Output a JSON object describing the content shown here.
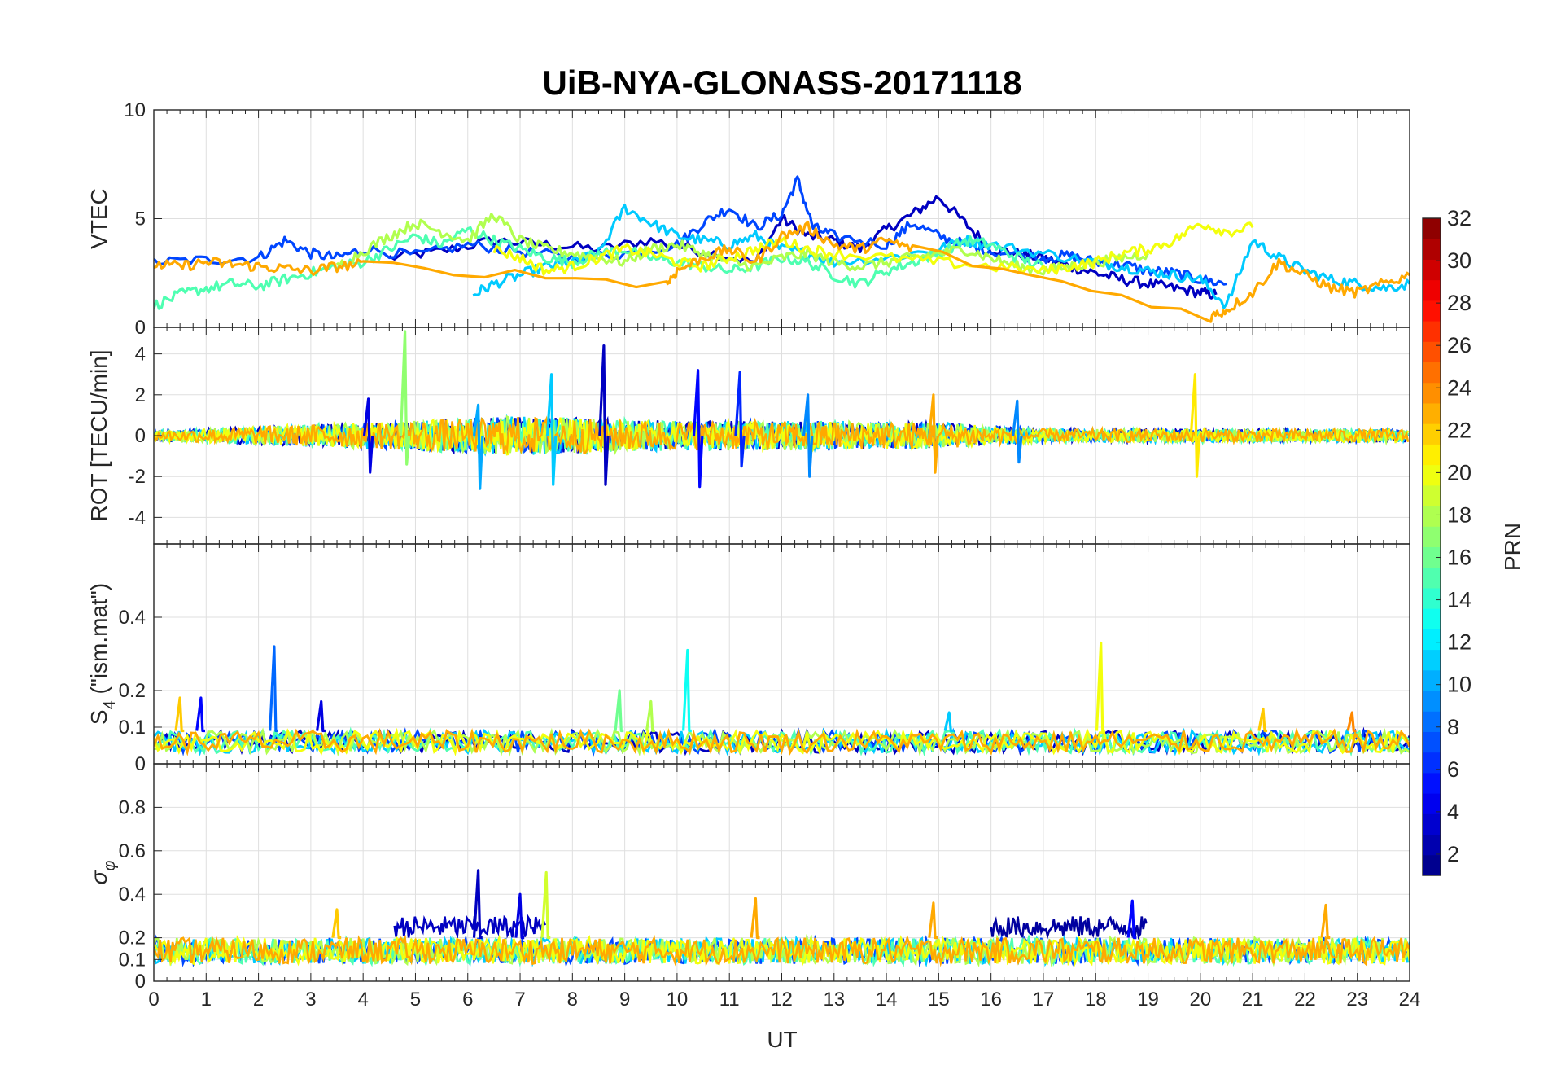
{
  "chart_data": {
    "type": "line",
    "title": "UiB-NYA-GLONASS-20171118",
    "xlabel": "UT",
    "x_range": [
      0,
      24
    ],
    "x_ticks": [
      0,
      1,
      2,
      3,
      4,
      5,
      6,
      7,
      8,
      9,
      10,
      11,
      12,
      13,
      14,
      15,
      16,
      17,
      18,
      19,
      20,
      21,
      22,
      23,
      24
    ],
    "grid": true,
    "colormap": "jet",
    "colorbar": {
      "label": "PRN",
      "range": [
        1,
        32
      ],
      "ticks": [
        2,
        4,
        6,
        8,
        10,
        12,
        14,
        16,
        18,
        20,
        22,
        24,
        26,
        28,
        30,
        32
      ]
    },
    "panels": [
      {
        "name": "vtec",
        "ylabel": "VTEC",
        "ylim": [
          0,
          10
        ],
        "yticks": [
          0,
          5,
          10
        ],
        "series": [
          {
            "prn": 3,
            "x": [
              4.5,
              5.5,
              6.5,
              7.5,
              8.5,
              9.5,
              10.5,
              11.5,
              12,
              12.5,
              13,
              13.5,
              14,
              14.5,
              15,
              15.5,
              16,
              16.5,
              17,
              17.5,
              18,
              18.5,
              19,
              19.5,
              20,
              20.3
            ],
            "y": [
              3.2,
              3.5,
              4.0,
              3.8,
              3.6,
              4.0,
              3.5,
              3.0,
              5.0,
              4.2,
              4.0,
              3.6,
              4.5,
              5.2,
              6.0,
              4.8,
              3.6,
              3.4,
              3.2,
              2.8,
              2.5,
              2.2,
              2.0,
              1.8,
              1.6,
              1.5
            ]
          },
          {
            "prn": 7,
            "x": [
              0,
              1,
              2,
              2.5,
              3,
              3.5,
              4,
              5,
              6,
              7,
              8,
              9,
              10,
              10.5,
              11,
              11.5,
              12,
              12.3,
              12.6,
              13,
              14,
              14.5,
              15,
              15.5,
              16,
              17,
              17.5,
              18,
              18.5,
              19,
              19.5,
              20,
              20.5
            ],
            "y": [
              3.0,
              3.1,
              3.2,
              4.0,
              3.4,
              3.2,
              3.6,
              3.3,
              3.8,
              3.5,
              3.2,
              3.4,
              3.8,
              4.8,
              5.5,
              4.6,
              5.2,
              6.8,
              4.6,
              4.2,
              3.8,
              4.8,
              4.2,
              3.8,
              3.5,
              3.2,
              3.3,
              3.0,
              2.9,
              2.6,
              2.5,
              2.2,
              2.0
            ]
          },
          {
            "prn": 11,
            "x": [
              6.1,
              6.5,
              7,
              7.5,
              8,
              8.5,
              9,
              9.5,
              10,
              10.5,
              11,
              11.5,
              12,
              12.5,
              13,
              14,
              15,
              15.5,
              16,
              17,
              18,
              18.5,
              19,
              19.5,
              20,
              20.5,
              21,
              21.5,
              22,
              22.5,
              23,
              23.5,
              24
            ],
            "y": [
              1.5,
              2.0,
              2.4,
              2.8,
              3.0,
              3.4,
              5.5,
              4.8,
              4.2,
              4.0,
              3.8,
              4.2,
              3.6,
              3.4,
              3.0,
              3.2,
              3.6,
              4.0,
              3.8,
              3.4,
              3.0,
              2.8,
              2.6,
              2.4,
              2.2,
              1.0,
              4.0,
              3.2,
              2.6,
              2.2,
              2.0,
              1.8,
              2.0
            ]
          },
          {
            "prn": 15,
            "x": [
              0,
              0.5,
              1,
              1.5,
              2,
              2.5,
              3,
              3.5,
              4,
              4.5,
              5,
              5.5,
              6,
              6.5,
              7,
              7.5,
              8,
              8.5,
              9,
              9.5,
              10,
              10.5,
              11,
              11.5,
              12,
              12.5,
              13,
              13.5,
              14,
              14.5,
              15,
              15.5,
              16,
              16.5,
              17
            ],
            "y": [
              1.0,
              1.5,
              1.8,
              2.0,
              1.9,
              2.2,
              2.5,
              2.8,
              3.0,
              3.6,
              4.2,
              3.8,
              4.5,
              4.0,
              3.6,
              3.2,
              3.0,
              3.4,
              3.6,
              3.2,
              3.0,
              2.8,
              2.6,
              2.8,
              3.2,
              3.0,
              2.4,
              2.0,
              2.6,
              3.0,
              3.4,
              4.0,
              3.8,
              3.2,
              2.8
            ]
          },
          {
            "prn": 18,
            "x": [
              3.5,
              4,
              4.5,
              5,
              5.5,
              6,
              6.5,
              7,
              7.5,
              8,
              8.5,
              9,
              9.5,
              10,
              10.5,
              11,
              11.5,
              12,
              12.5,
              13,
              13.5,
              14,
              14.5,
              15,
              15.5,
              16,
              16.5,
              17,
              17.5,
              18,
              18.5,
              19
            ],
            "y": [
              2.8,
              3.5,
              4.2,
              4.8,
              4.4,
              4.0,
              5.2,
              4.0,
              3.6,
              3.4,
              3.2,
              3.0,
              3.6,
              3.8,
              3.4,
              3.0,
              2.8,
              3.2,
              3.4,
              3.0,
              2.8,
              3.0,
              3.2,
              3.4,
              3.6,
              3.2,
              2.8,
              2.6,
              2.8,
              3.0,
              3.2,
              3.4
            ]
          },
          {
            "prn": 20,
            "x": [
              6.5,
              7,
              7.5,
              8,
              8.5,
              9,
              9.5,
              10,
              10.5,
              11,
              11.5,
              12,
              12.5,
              13,
              14,
              15,
              16,
              17,
              17.5,
              18,
              18.5,
              19,
              19.5,
              20,
              20.5,
              21
            ],
            "y": [
              3.6,
              3.2,
              2.6,
              2.8,
              3.2,
              3.6,
              3.4,
              3.0,
              2.8,
              3.2,
              3.6,
              4.0,
              3.6,
              3.4,
              3.2,
              3.0,
              2.8,
              2.6,
              2.8,
              3.0,
              3.4,
              3.6,
              4.0,
              4.8,
              4.4,
              4.6
            ]
          },
          {
            "prn": 23,
            "x": [
              0,
              0.5,
              1,
              1.5,
              2,
              2.5,
              3,
              3.5,
              4,
              9.8,
              10,
              10.5,
              11,
              11.5,
              12,
              12.5,
              13,
              13.5,
              14,
              14.5,
              20.2,
              20.5,
              21,
              21.5,
              22,
              22.5,
              23,
              23.5,
              24
            ],
            "y": [
              2.9,
              2.8,
              3.0,
              2.9,
              2.8,
              2.7,
              2.6,
              2.8,
              2.9,
              2.0,
              2.6,
              3.2,
              3.6,
              3.0,
              4.2,
              4.6,
              3.8,
              3.6,
              4.0,
              3.6,
              0.5,
              0.8,
              1.6,
              3.0,
              2.4,
              1.8,
              1.6,
              2.0,
              2.4
            ]
          }
        ]
      },
      {
        "name": "rot",
        "ylabel": "ROT [TECU/min]",
        "ylim": [
          -5.3,
          5.3
        ],
        "yticks": [
          -4,
          -2,
          0,
          2,
          4
        ],
        "spikes": [
          {
            "prn": 3,
            "x": 8.6,
            "ymax": 4.4,
            "ymin": -2.4
          },
          {
            "prn": 17,
            "x": 4.8,
            "ymax": 5.1,
            "ymin": -1.4
          },
          {
            "prn": 4,
            "x": 4.1,
            "ymax": 1.8,
            "ymin": -1.8
          },
          {
            "prn": 10,
            "x": 6.2,
            "ymax": 1.5,
            "ymin": -2.6
          },
          {
            "prn": 11,
            "x": 7.6,
            "ymax": 3.0,
            "ymin": -2.4
          },
          {
            "prn": 5,
            "x": 10.4,
            "ymax": 3.2,
            "ymin": -2.5
          },
          {
            "prn": 6,
            "x": 11.2,
            "ymax": 3.1,
            "ymin": -1.5
          },
          {
            "prn": 9,
            "x": 12.5,
            "ymax": 2.0,
            "ymin": -2.0
          },
          {
            "prn": 23,
            "x": 14.9,
            "ymax": 2.0,
            "ymin": -1.8
          },
          {
            "prn": 9,
            "x": 16.5,
            "ymax": 1.7,
            "ymin": -1.3
          },
          {
            "prn": 21,
            "x": 19.9,
            "ymax": 3.0,
            "ymin": -2.0
          }
        ],
        "noise_envelope": [
          {
            "x": [
              0,
              4,
              7,
              10,
              13,
              15,
              17,
              20,
              24
            ],
            "amplitude": [
              0.3,
              0.8,
              1.2,
              0.9,
              0.9,
              0.8,
              0.4,
              0.4,
              0.4
            ]
          }
        ]
      },
      {
        "name": "s4",
        "ylabel": "S_4 (\"ism.mat\")",
        "ylim": [
          0,
          0.6
        ],
        "yticks": [
          0,
          0.1,
          0.2,
          0.4
        ],
        "ytick_labels": [
          "0",
          "0.1",
          "0.2",
          "0.4"
        ],
        "spikes": [
          {
            "prn": 8,
            "x": 2.3,
            "ymax": 0.32
          },
          {
            "prn": 13,
            "x": 10.2,
            "ymax": 0.31
          },
          {
            "prn": 20,
            "x": 18.1,
            "ymax": 0.33
          },
          {
            "prn": 22,
            "x": 0.5,
            "ymax": 0.18
          },
          {
            "prn": 5,
            "x": 0.9,
            "ymax": 0.18
          },
          {
            "prn": 4,
            "x": 3.2,
            "ymax": 0.17
          },
          {
            "prn": 16,
            "x": 8.9,
            "ymax": 0.2
          },
          {
            "prn": 18,
            "x": 9.5,
            "ymax": 0.17
          },
          {
            "prn": 11,
            "x": 15.2,
            "ymax": 0.14
          },
          {
            "prn": 22,
            "x": 21.2,
            "ymax": 0.15
          },
          {
            "prn": 24,
            "x": 22.9,
            "ymax": 0.14
          }
        ],
        "baseline": [
          0.03,
          0.09
        ]
      },
      {
        "name": "sigma_phi",
        "ylabel": "σ_φ",
        "ylim": [
          0,
          1
        ],
        "yticks": [
          0,
          0.1,
          0.2,
          0.4,
          0.6,
          0.8
        ],
        "ytick_labels": [
          "0",
          "0.1",
          "0.2",
          "0.4",
          "0.6",
          "0.8"
        ],
        "spikes": [
          {
            "prn": 3,
            "x": 6.2,
            "ymax": 0.51
          },
          {
            "prn": 19,
            "x": 7.5,
            "ymax": 0.5
          },
          {
            "prn": 4,
            "x": 7.0,
            "ymax": 0.4
          },
          {
            "prn": 23,
            "x": 11.5,
            "ymax": 0.38
          },
          {
            "prn": 23,
            "x": 14.9,
            "ymax": 0.36
          },
          {
            "prn": 5,
            "x": 18.7,
            "ymax": 0.37
          },
          {
            "prn": 23,
            "x": 22.4,
            "ymax": 0.35
          },
          {
            "prn": 22,
            "x": 3.5,
            "ymax": 0.33
          }
        ],
        "elevated_intervals": [
          {
            "prn": 3,
            "x": [
              4.6,
              7.5
            ],
            "level": [
              0.2,
              0.3
            ]
          },
          {
            "prn": 2,
            "x": [
              16.0,
              19.0
            ],
            "level": [
              0.2,
              0.3
            ]
          }
        ],
        "baseline": [
          0.08,
          0.2
        ]
      }
    ]
  }
}
